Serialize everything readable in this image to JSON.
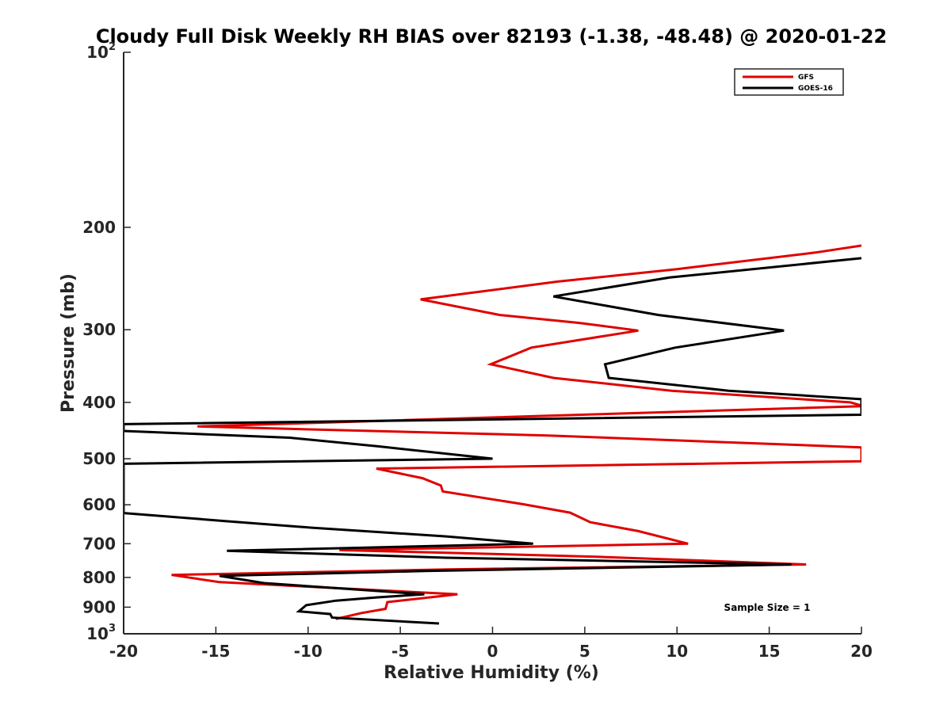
{
  "chart_data": {
    "type": "line",
    "title": "Cloudy Full Disk Weekly RH BIAS over 82193 (-1.38, -48.48) @ 2020-01-22",
    "xlabel": "Relative Humidity (%)",
    "ylabel": "Pressure (mb)",
    "xlim": [
      -20,
      20
    ],
    "ylim": [
      100,
      1000
    ],
    "y_scale": "log",
    "y_reversed": true,
    "grid": false,
    "x_ticks": [
      "-20",
      "-15",
      "-10",
      "-5",
      "0",
      "5",
      "10",
      "15",
      "20"
    ],
    "y_ticks": [
      {
        "value": 100,
        "base": "10",
        "exp": "2"
      },
      {
        "value": 200,
        "label": "200"
      },
      {
        "value": 300,
        "label": "300"
      },
      {
        "value": 400,
        "label": "400"
      },
      {
        "value": 500,
        "label": "500"
      },
      {
        "value": 600,
        "label": "600"
      },
      {
        "value": 700,
        "label": "700"
      },
      {
        "value": 800,
        "label": "800"
      },
      {
        "value": 900,
        "label": "900"
      },
      {
        "value": 1000,
        "base": "10",
        "exp": "3"
      }
    ],
    "legend_position": "top-right",
    "annotation": "Sample Size = 1",
    "series": [
      {
        "name": "GFS",
        "color": "#e00000",
        "points": [
          [
            20,
            215
          ],
          [
            17.5,
            221
          ],
          [
            10,
            236
          ],
          [
            3.5,
            248
          ],
          [
            -3.9,
            266
          ],
          [
            0.4,
            283
          ],
          [
            4.7,
            292
          ],
          [
            7.9,
            301
          ],
          [
            2.1,
            322
          ],
          [
            -0.1,
            344
          ],
          [
            3.3,
            363
          ],
          [
            9.7,
            382
          ],
          [
            19.4,
            400
          ],
          [
            20,
            405
          ],
          [
            20,
            406
          ],
          [
            -16,
            440
          ],
          [
            3,
            456
          ],
          [
            20,
            478
          ],
          [
            20,
            480
          ],
          [
            20,
            505
          ],
          [
            -6.3,
            520
          ],
          [
            -3.8,
            540
          ],
          [
            -2.8,
            556
          ],
          [
            -2.7,
            569
          ],
          [
            1.7,
            599
          ],
          [
            4.2,
            619
          ],
          [
            5.3,
            643
          ],
          [
            7.9,
            666
          ],
          [
            10.6,
            700
          ],
          [
            -8.3,
            718
          ],
          [
            -2.9,
            725
          ],
          [
            5.6,
            737
          ],
          [
            17,
            760
          ],
          [
            -2.4,
            775
          ],
          [
            -17.4,
            792
          ],
          [
            -14.8,
            815
          ],
          [
            -1.9,
            855
          ],
          [
            -5.7,
            882
          ],
          [
            -5.8,
            906
          ],
          [
            -7.1,
            921
          ],
          [
            -8.5,
            943
          ]
        ]
      },
      {
        "name": "GOES-16",
        "color": "#000000",
        "points": [
          [
            20,
            226
          ],
          [
            9.6,
            244
          ],
          [
            3.3,
            263
          ],
          [
            9,
            283
          ],
          [
            15.8,
            301
          ],
          [
            9.9,
            322
          ],
          [
            6.1,
            344
          ],
          [
            6.3,
            363
          ],
          [
            12.8,
            382
          ],
          [
            20,
            395
          ],
          [
            20,
            396
          ],
          [
            20,
            420
          ],
          [
            -20,
            436
          ],
          [
            -20,
            448
          ],
          [
            -11,
            460
          ],
          [
            -6.2,
            476
          ],
          [
            0,
            500
          ],
          [
            -20,
            510
          ],
          [
            -20,
            620
          ],
          [
            -14.5,
            640
          ],
          [
            -9.8,
            657
          ],
          [
            -2.5,
            680
          ],
          [
            2.2,
            700
          ],
          [
            -14.4,
            720
          ],
          [
            -2.5,
            740
          ],
          [
            16.2,
            760
          ],
          [
            -3.7,
            780
          ],
          [
            -14.8,
            795
          ],
          [
            -12.4,
            818
          ],
          [
            -3.7,
            855
          ],
          [
            -6.3,
            866
          ],
          [
            -8.5,
            877
          ],
          [
            -10.1,
            893
          ],
          [
            -10.5,
            915
          ],
          [
            -8.8,
            925
          ],
          [
            -8.7,
            938
          ],
          [
            -2.9,
            960
          ]
        ]
      }
    ]
  }
}
